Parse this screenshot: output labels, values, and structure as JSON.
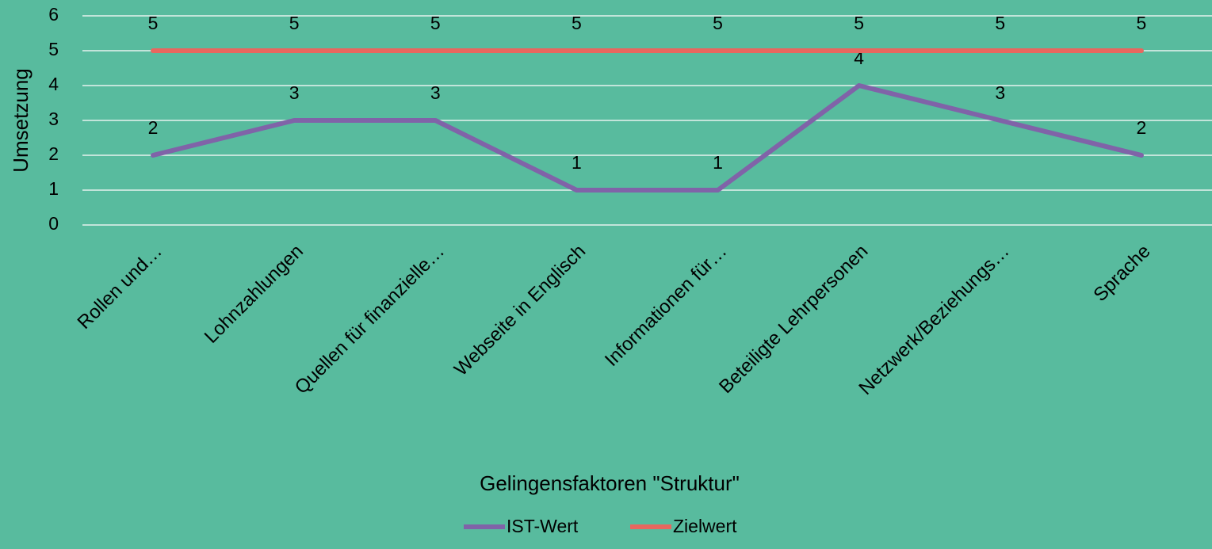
{
  "chart_data": {
    "type": "line",
    "xlabel": "Gelingensfaktoren \"Struktur\"",
    "ylabel": "Umsetzung",
    "categories": [
      "Rollen und…",
      "Lohnzahlungen",
      "Quellen für finanzielle…",
      "Webseite in Englisch",
      "Informationen für…",
      "Beteiligte Lehrpersonen",
      "Netzwerk/Beziehungs…",
      "Sprache"
    ],
    "series": [
      {
        "name": "IST-Wert",
        "color": "#8063a8",
        "values": [
          2,
          3,
          3,
          1,
          1,
          4,
          3,
          2
        ]
      },
      {
        "name": "Zielwert",
        "color": "#e8675f",
        "values": [
          5,
          5,
          5,
          5,
          5,
          5,
          5,
          5
        ]
      }
    ],
    "ylim": [
      0,
      6
    ],
    "yticks": [
      0,
      1,
      2,
      3,
      4,
      5,
      6
    ],
    "grid": true,
    "data_labels": true,
    "legend": "bottom"
  }
}
